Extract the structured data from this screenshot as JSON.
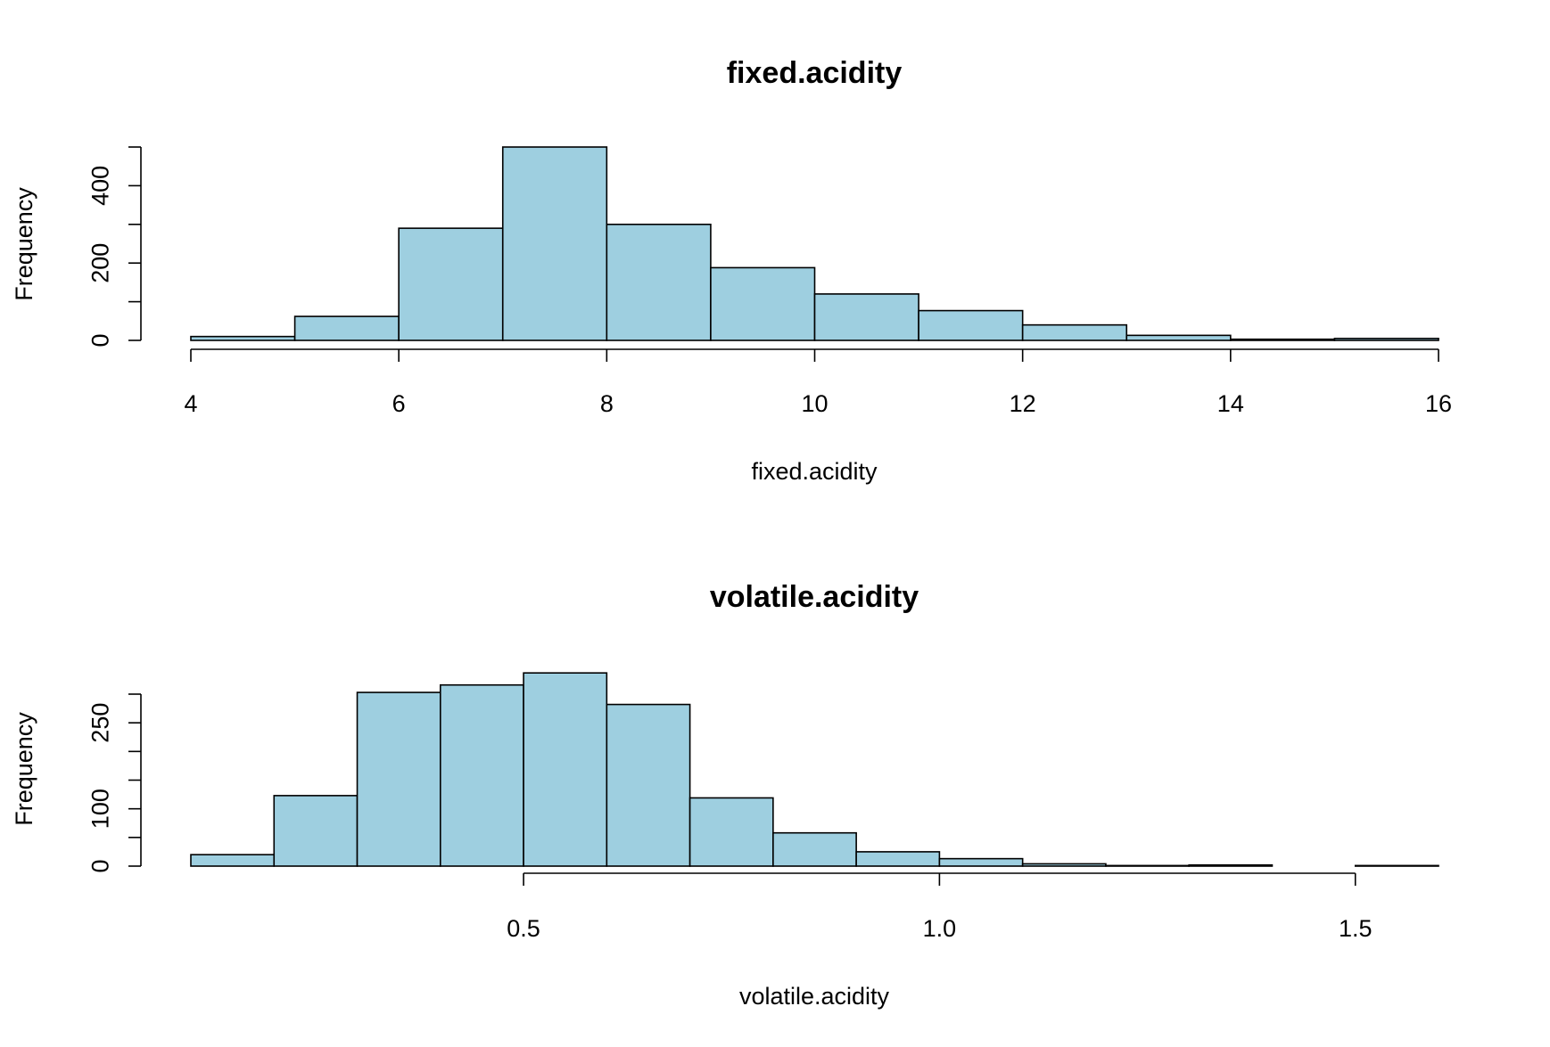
{
  "colors": {
    "bar_fill": "#9ecfe0",
    "bar_stroke": "#000000",
    "background": "#ffffff"
  },
  "chart_data": [
    {
      "type": "bar",
      "title": "fixed.acidity",
      "xlabel": "fixed.acidity",
      "ylabel": "Frequency",
      "bin_edges": [
        4,
        5,
        6,
        7,
        8,
        9,
        10,
        11,
        12,
        13,
        14,
        15,
        16
      ],
      "values": [
        10,
        62,
        290,
        500,
        300,
        188,
        120,
        77,
        40,
        13,
        3,
        5
      ],
      "xlim": [
        4,
        16
      ],
      "xticks": [
        4,
        6,
        8,
        10,
        12,
        14,
        16
      ],
      "xtick_labels": [
        "4",
        "6",
        "8",
        "10",
        "12",
        "14",
        "16"
      ],
      "yticks": [
        0,
        200,
        400
      ],
      "ytick_labels": [
        "0",
        "200",
        "400"
      ],
      "yminor_ticks": [
        0,
        100,
        200,
        300,
        400,
        500
      ],
      "ylim": [
        0,
        500
      ],
      "grid": false
    },
    {
      "type": "bar",
      "title": "volatile.acidity",
      "xlabel": "volatile.acidity",
      "ylabel": "Frequency",
      "bin_edges": [
        0.1,
        0.2,
        0.3,
        0.4,
        0.5,
        0.6,
        0.7,
        0.8,
        0.9,
        1.0,
        1.1,
        1.2,
        1.3,
        1.4,
        1.5,
        1.6
      ],
      "values": [
        20,
        123,
        303,
        316,
        337,
        282,
        119,
        58,
        25,
        13,
        4,
        1,
        2,
        0,
        1
      ],
      "xlim": [
        0.1,
        1.6
      ],
      "xticks": [
        0.5,
        1.0,
        1.5
      ],
      "xtick_labels": [
        "0.5",
        "1.0",
        "1.5"
      ],
      "yticks": [
        0,
        100,
        250
      ],
      "ytick_labels": [
        "0",
        "100",
        "250"
      ],
      "yminor_ticks": [
        0,
        50,
        100,
        150,
        200,
        250,
        300
      ],
      "ylim": [
        0,
        300
      ],
      "grid": false
    }
  ]
}
